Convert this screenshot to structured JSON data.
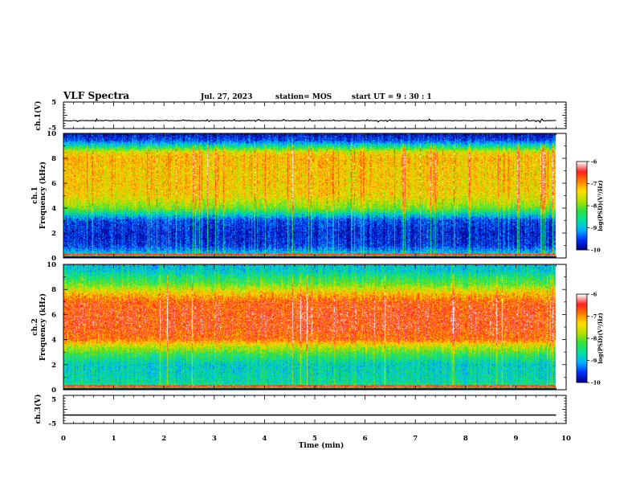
{
  "header": {
    "title": "VLF Spectra",
    "date": "Jul. 27, 2023",
    "station": "station= MOS",
    "start_time": "start UT =  9 : 30 : 1"
  },
  "colors": {
    "colormap": [
      "#000080",
      "#0030ff",
      "#00b0ff",
      "#00e0a0",
      "#30e040",
      "#b0e000",
      "#ffe000",
      "#ff8000",
      "#ff2020",
      "#ffffff"
    ],
    "trace": "#000000",
    "frame": "#000000"
  },
  "chart_data": [
    {
      "type": "line",
      "panel": "ch1-voltage",
      "ylabel": "ch.1(V)",
      "ylim": [
        -5,
        5
      ],
      "yticks": [
        "5",
        "-5"
      ],
      "x": [
        0,
        2,
        4,
        6,
        8,
        9.8
      ],
      "series": [
        {
          "values": [
            -2,
            -2,
            -2,
            -2,
            -2,
            -2
          ]
        }
      ]
    },
    {
      "type": "heatmap",
      "panel": "ch1-spectrogram",
      "ylabel": "ch.1\nFrequency (kHz)",
      "ylim": [
        0,
        10
      ],
      "yticks": [
        "0",
        "2",
        "4",
        "6",
        "8",
        "10"
      ],
      "xlim": [
        0,
        10
      ],
      "data_end_min": 9.8,
      "profile_kHz": [
        0,
        0.5,
        1,
        2,
        3,
        3.5,
        4,
        5,
        6,
        7,
        8,
        8.5,
        9,
        9.5,
        10
      ],
      "profile_log_psd": [
        -8.0,
        -9.1,
        -9.6,
        -9.7,
        -9.5,
        -8.8,
        -8.0,
        -7.4,
        -7.3,
        -7.3,
        -7.2,
        -7.4,
        -8.6,
        -9.5,
        -9.8
      ],
      "colorbar": {
        "title": "log(PSD)(V²/Hz)",
        "range": [
          -10,
          -6
        ],
        "ticks": [
          "-6",
          "-7",
          "-8",
          "-9",
          "-10"
        ]
      }
    },
    {
      "type": "heatmap",
      "panel": "ch2-spectrogram",
      "ylabel": "ch.2\nFrequency (kHz)",
      "ylim": [
        0,
        10
      ],
      "yticks": [
        "0",
        "2",
        "4",
        "6",
        "8",
        "10"
      ],
      "xlim": [
        0,
        10
      ],
      "data_end_min": 9.8,
      "profile_kHz": [
        0,
        0.5,
        1,
        2,
        2.8,
        3.5,
        4,
        5,
        6,
        7,
        7.8,
        8.5,
        9,
        9.5,
        10
      ],
      "profile_log_psd": [
        -7.8,
        -8.6,
        -8.7,
        -8.8,
        -8.3,
        -7.6,
        -6.8,
        -6.6,
        -6.6,
        -6.7,
        -7.3,
        -8.1,
        -8.4,
        -8.8,
        -8.9
      ],
      "colorbar": {
        "title": "log(PSD)(V²/Hz)",
        "range": [
          -10,
          -6
        ],
        "ticks": [
          "-6",
          "-7",
          "-8",
          "-9",
          "-10"
        ]
      }
    },
    {
      "type": "line",
      "panel": "ch3-voltage",
      "ylabel": "ch.3(V)",
      "ylim": [
        -5,
        5
      ],
      "yticks": [
        "5",
        "-5"
      ],
      "x": [
        0,
        2,
        4,
        6,
        8,
        9.8
      ],
      "series": [
        {
          "values": [
            -2,
            -2,
            -2,
            -2,
            -2,
            -2
          ]
        }
      ],
      "xlabel": "Time (min)",
      "xticks": [
        "0",
        "1",
        "2",
        "3",
        "4",
        "5",
        "6",
        "7",
        "8",
        "9",
        "10"
      ]
    }
  ]
}
